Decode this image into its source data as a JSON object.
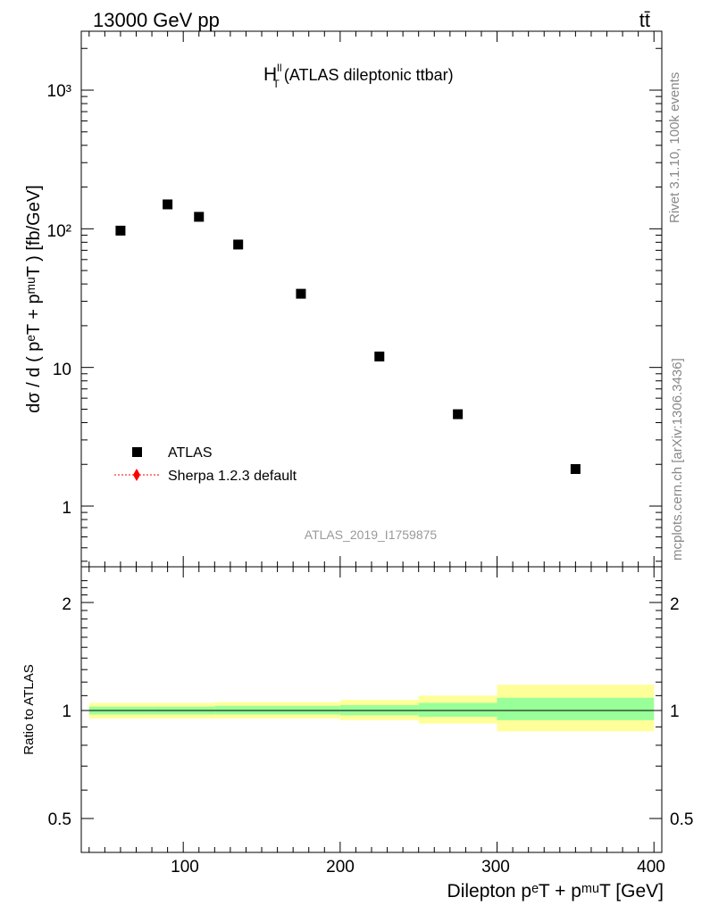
{
  "header": {
    "energy_label": "13000 GeV pp",
    "process_label": "tt̄",
    "title_main": "H",
    "title_sup": "ll",
    "title_sub": "T",
    "title_rest": " (ATLAS dileptonic ttbar)"
  },
  "side": {
    "rivet": "Rivet 3.1.10,  100k events",
    "mcplots": "mcplots.cern.ch [arXiv:1306.3436]"
  },
  "watermark": "ATLAS_2019_I1759875",
  "legend": {
    "data_label": "ATLAS",
    "mc_label": "Sherpa 1.2.3 default"
  },
  "colors": {
    "data": "#000000",
    "mc": "#ff0000",
    "band_inner": "#99ff99",
    "band_outer": "#ffff99"
  },
  "axes": {
    "ylabel_main": "dσ / d ( pᵉT + pᵐᵘT ) [fb/GeV]",
    "ylabel_ratio": "Ratio to ATLAS",
    "xlabel": "Dilepton pᵉT + pᵐᵘT [GeV]",
    "x_ticks": [
      "100",
      "200",
      "300",
      "400"
    ],
    "y_ticks_main": [
      "10³",
      "10²",
      "10",
      "1"
    ],
    "y_ticks_ratio": [
      "2",
      "1",
      "0.5"
    ]
  },
  "chart_data": {
    "type": "scatter",
    "title": "H_T^ll (ATLAS dileptonic ttbar)",
    "xlabel": "Dilepton p_T^e + p_T^mu [GeV]",
    "ylabel": "dσ / d ( p_T^e + p_T^mu ) [fb/GeV]",
    "xlim": [
      35,
      405
    ],
    "ylim": [
      0.35,
      2800
    ],
    "yscale": "log",
    "series": [
      {
        "name": "ATLAS",
        "x": [
          60,
          90,
          110,
          135,
          175,
          225,
          275,
          350
        ],
        "values": [
          97,
          150,
          122,
          77,
          34,
          12,
          4.6,
          1.85
        ]
      }
    ],
    "ratio": {
      "ylabel": "Ratio to ATLAS",
      "ylim": [
        0.4,
        2.3
      ],
      "yscale": "log",
      "bins": [
        {
          "lo": 40,
          "hi": 80,
          "inner": [
            0.975,
            1.025
          ],
          "outer": [
            0.95,
            1.05
          ]
        },
        {
          "lo": 80,
          "hi": 120,
          "inner": [
            0.975,
            1.025
          ],
          "outer": [
            0.95,
            1.05
          ]
        },
        {
          "lo": 120,
          "hi": 200,
          "inner": [
            0.975,
            1.03
          ],
          "outer": [
            0.95,
            1.055
          ]
        },
        {
          "lo": 200,
          "hi": 250,
          "inner": [
            0.97,
            1.035
          ],
          "outer": [
            0.94,
            1.07
          ]
        },
        {
          "lo": 250,
          "hi": 300,
          "inner": [
            0.96,
            1.05
          ],
          "outer": [
            0.92,
            1.1
          ]
        },
        {
          "lo": 300,
          "hi": 400,
          "inner": [
            0.94,
            1.085
          ],
          "outer": [
            0.875,
            1.18
          ]
        }
      ]
    }
  }
}
